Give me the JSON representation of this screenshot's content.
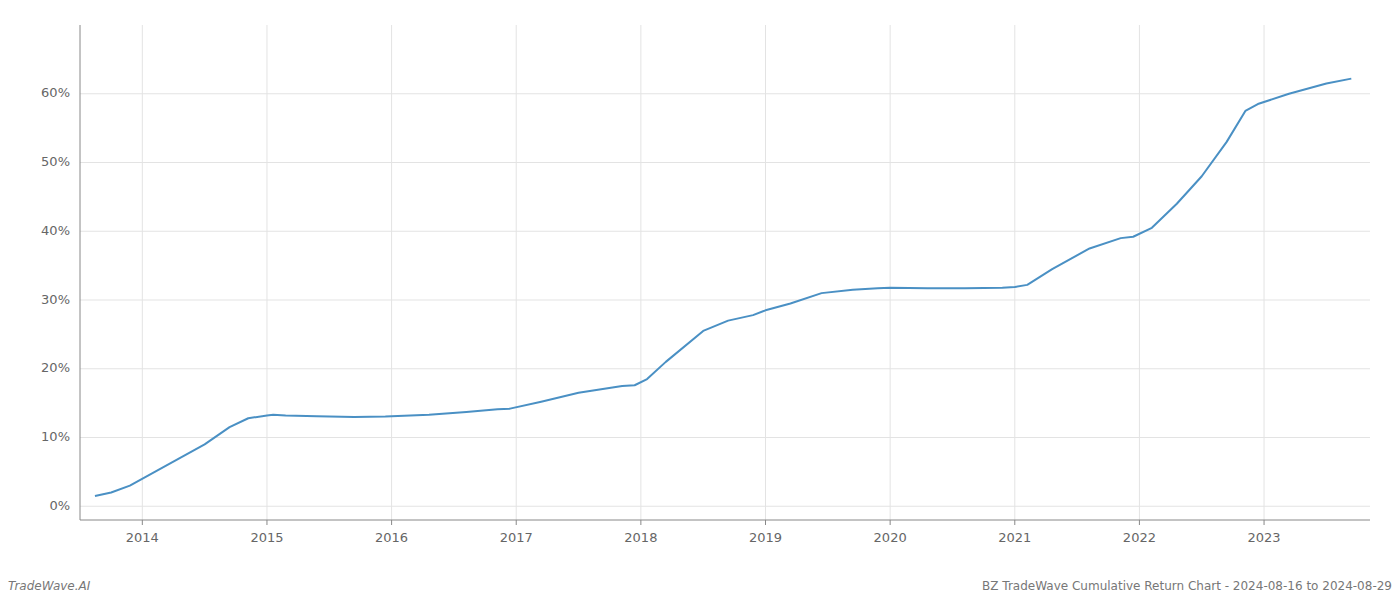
{
  "chart_data": {
    "type": "line",
    "annotations": [
      "TradeWave.AI",
      "BZ TradeWave Cumulative Return Chart - 2024-08-16 to 2024-08-29"
    ],
    "x": [
      2013.62,
      2013.75,
      2013.9,
      2014.1,
      2014.3,
      2014.5,
      2014.7,
      2014.85,
      2015.0,
      2015.05,
      2015.15,
      2015.4,
      2015.7,
      2015.95,
      2016.0,
      2016.3,
      2016.6,
      2016.85,
      2016.95,
      2017.2,
      2017.5,
      2017.85,
      2017.95,
      2018.05,
      2018.2,
      2018.5,
      2018.7,
      2018.9,
      2019.0,
      2019.2,
      2019.45,
      2019.7,
      2019.9,
      2020.0,
      2020.3,
      2020.6,
      2020.9,
      2021.0,
      2021.1,
      2021.3,
      2021.6,
      2021.85,
      2021.95,
      2022.1,
      2022.3,
      2022.5,
      2022.7,
      2022.85,
      2022.95,
      2023.2,
      2023.5,
      2023.7
    ],
    "values": [
      1.5,
      2.0,
      3.0,
      5.0,
      7.0,
      9.0,
      11.5,
      12.8,
      13.2,
      13.3,
      13.2,
      13.1,
      13.0,
      13.05,
      13.1,
      13.3,
      13.7,
      14.1,
      14.2,
      15.2,
      16.5,
      17.5,
      17.6,
      18.5,
      21.0,
      25.5,
      27.0,
      27.8,
      28.5,
      29.5,
      31.0,
      31.5,
      31.7,
      31.8,
      31.7,
      31.7,
      31.8,
      31.9,
      32.2,
      34.5,
      37.5,
      39.0,
      39.2,
      40.5,
      44.0,
      48.0,
      53.0,
      57.5,
      58.5,
      60.0,
      61.5,
      62.2
    ],
    "color": "#4a90c4",
    "xlim": [
      2013.5,
      2023.85
    ],
    "xticks": [
      2014,
      2015,
      2016,
      2017,
      2018,
      2019,
      2020,
      2021,
      2022,
      2023
    ],
    "ylim": [
      -2,
      70
    ],
    "yticks": [
      {
        "value": 0,
        "label": "0%"
      },
      {
        "value": 10,
        "label": "10%"
      },
      {
        "value": 20,
        "label": "20%"
      },
      {
        "value": 30,
        "label": "30%"
      },
      {
        "value": 40,
        "label": "40%"
      },
      {
        "value": 50,
        "label": "50%"
      },
      {
        "value": 60,
        "label": "60%"
      }
    ],
    "grid": true
  }
}
